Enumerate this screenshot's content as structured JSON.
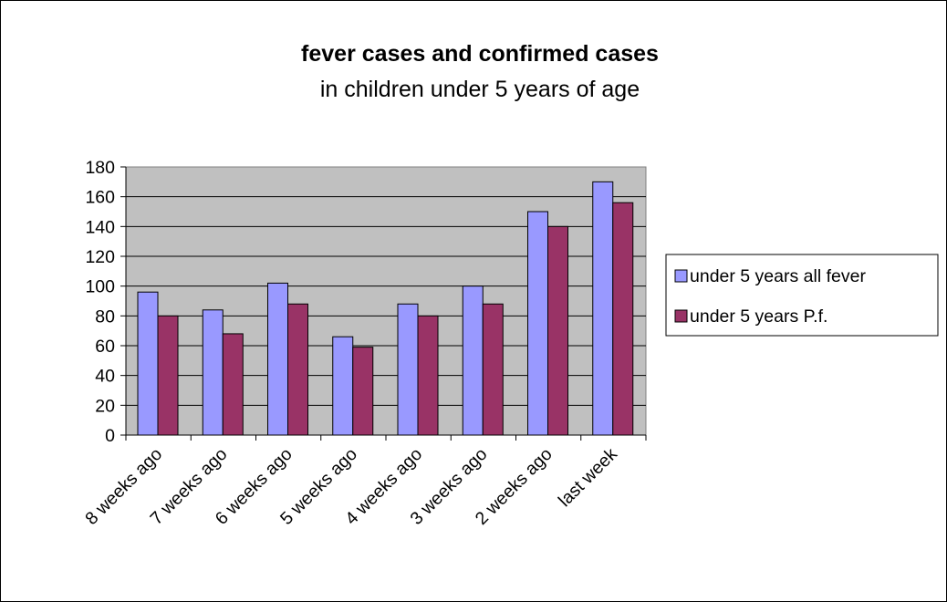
{
  "chart_data": {
    "type": "bar",
    "title": "fever cases and confirmed cases",
    "subtitle": "in children under 5 years of age",
    "xlabel": "",
    "ylabel": "",
    "categories": [
      "8 weeks ago",
      "7 weeks ago",
      "6 weeks ago",
      "5 weeks ago",
      "4 weeks ago",
      "3 weeks ago",
      "2 weeks ago",
      "last week"
    ],
    "series": [
      {
        "name": "under 5 years all fever",
        "color": "#9999FF",
        "values": [
          96,
          84,
          102,
          66,
          88,
          100,
          150,
          170
        ]
      },
      {
        "name": "under 5 years P.f.",
        "color": "#993366",
        "values": [
          80,
          68,
          88,
          59,
          80,
          88,
          140,
          156
        ]
      }
    ],
    "ylim": [
      0,
      180
    ],
    "yticks": [
      0,
      20,
      40,
      60,
      80,
      100,
      120,
      140,
      160,
      180
    ],
    "grid": true,
    "plot_background": "#C0C0C0",
    "legend_position": "right"
  }
}
